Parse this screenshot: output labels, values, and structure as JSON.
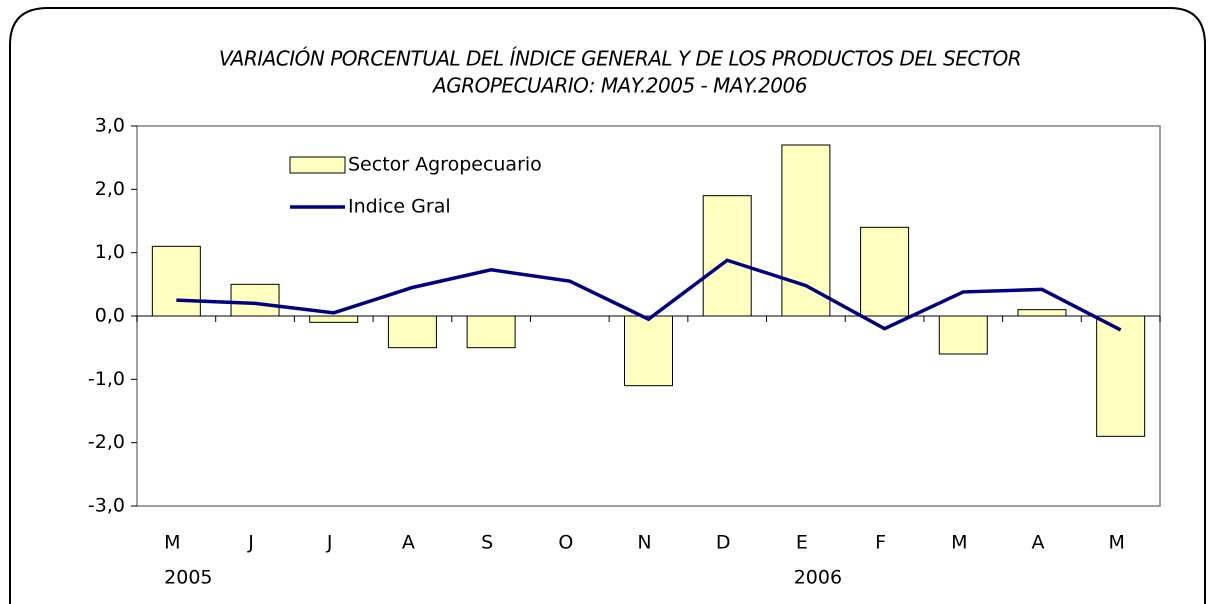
{
  "chart_data": {
    "type": "bar-line",
    "title": [
      "VARIACIÓN PORCENTUAL DEL ÍNDICE GENERAL Y DE LOS PRODUCTOS DEL SECTOR",
      "AGROPECUARIO: MAY.2005 - MAY.2006"
    ],
    "categories": [
      "M",
      "J",
      "J",
      "A",
      "S",
      "O",
      "N",
      "D",
      "E",
      "F",
      "M",
      "A",
      "M"
    ],
    "years": [
      "2005",
      null,
      null,
      null,
      null,
      null,
      null,
      null,
      "2006",
      null,
      null,
      null,
      null
    ],
    "series": [
      {
        "name": "Sector Agropecuario",
        "type": "bar",
        "color": "#ffffc0",
        "values": [
          1.1,
          0.5,
          -0.1,
          -0.5,
          -0.5,
          0,
          -1.1,
          1.9,
          2.7,
          1.4,
          -0.6,
          0.1,
          -1.9
        ]
      },
      {
        "name": "Indice Gral",
        "type": "line",
        "color": "#000080",
        "values": [
          0.25,
          0.2,
          0.05,
          0.45,
          0.73,
          0.55,
          -0.05,
          0.88,
          0.48,
          -0.2,
          0.38,
          0.42,
          -0.22
        ]
      }
    ],
    "ylim": [
      -3,
      3
    ],
    "yticks": [
      {
        "value": -3,
        "label": "-3,0"
      },
      {
        "value": -2,
        "label": "-2,0"
      },
      {
        "value": -1,
        "label": "-1,0"
      },
      {
        "value": 0,
        "label": "0,0"
      },
      {
        "value": 1,
        "label": "1,0"
      },
      {
        "value": 2,
        "label": "2,0"
      },
      {
        "value": 3,
        "label": "3,0"
      }
    ],
    "legend": "upper left"
  }
}
